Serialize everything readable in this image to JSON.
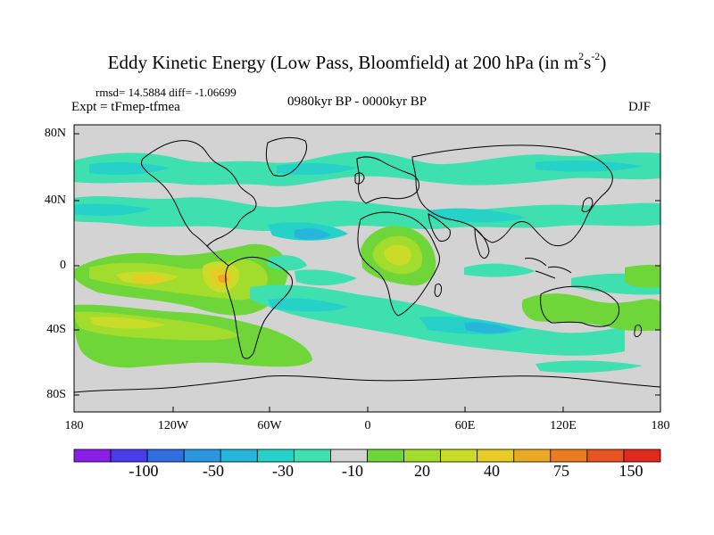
{
  "title": {
    "main": "Eddy Kinetic Energy (Low Pass, Bloomfield) at 200 hPa (in m",
    "sup1": "2",
    "mid": "s",
    "sup2": "-2",
    "end": ")"
  },
  "stats": "rmsd= 14.5884 diff= -1.06699",
  "experiment": "Expt = tFmep-tfmea",
  "period": "0980kyr BP - 0000kyr BP",
  "season": "DJF",
  "axes": {
    "y_ticks": [
      "80N",
      "40N",
      "0",
      "40S",
      "80S"
    ],
    "x_ticks": [
      "180",
      "120W",
      "60W",
      "0",
      "60E",
      "120E",
      "180"
    ]
  },
  "colorbar": {
    "labels": [
      "-100",
      "-50",
      "-30",
      "-10",
      "20",
      "40",
      "75",
      "150"
    ],
    "colors": [
      "#8b1ee6",
      "#4a3ce8",
      "#2f6fe0",
      "#2a96e0",
      "#26b6da",
      "#26d2c8",
      "#3ee0b0",
      "#d3d3d3",
      "#6fd63a",
      "#a2dc2c",
      "#cadc28",
      "#e6cc24",
      "#eaa824",
      "#ea7d22",
      "#e65422",
      "#e02a1e"
    ]
  },
  "colors": {
    "land_mask": "#d3d3d3",
    "coastline": "#000000"
  }
}
